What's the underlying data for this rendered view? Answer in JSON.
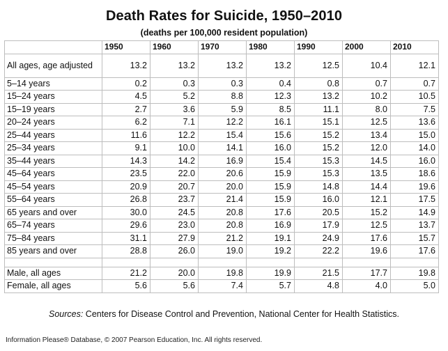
{
  "title": "Death Rates for Suicide, 1950–2010",
  "subtitle": "(deaths per 100,000 resident population)",
  "columns": [
    "1950",
    "1960",
    "1970",
    "1980",
    "1990",
    "2000",
    "2010"
  ],
  "rows": [
    {
      "label": "All ages, age adjusted",
      "values": [
        "13.2",
        "13.2",
        "13.2",
        "13.2",
        "12.5",
        "10.4",
        "12.1"
      ]
    },
    {
      "label": "5–14 years",
      "values": [
        "0.2",
        "0.3",
        "0.3",
        "0.4",
        "0.8",
        "0.7",
        "0.7"
      ]
    },
    {
      "label": "15–24 years",
      "values": [
        "4.5",
        "5.2",
        "8.8",
        "12.3",
        "13.2",
        "10.2",
        "10.5"
      ]
    },
    {
      "label": "15–19 years",
      "values": [
        "2.7",
        "3.6",
        "5.9",
        "8.5",
        "11.1",
        "8.0",
        "7.5"
      ]
    },
    {
      "label": "20–24 years",
      "values": [
        "6.2",
        "7.1",
        "12.2",
        "16.1",
        "15.1",
        "12.5",
        "13.6"
      ]
    },
    {
      "label": "25–44 years",
      "values": [
        "11.6",
        "12.2",
        "15.4",
        "15.6",
        "15.2",
        "13.4",
        "15.0"
      ]
    },
    {
      "label": "25–34 years",
      "values": [
        "9.1",
        "10.0",
        "14.1",
        "16.0",
        "15.2",
        "12.0",
        "14.0"
      ]
    },
    {
      "label": "35–44 years",
      "values": [
        "14.3",
        "14.2",
        "16.9",
        "15.4",
        "15.3",
        "14.5",
        "16.0"
      ]
    },
    {
      "label": "45–64 years",
      "values": [
        "23.5",
        "22.0",
        "20.6",
        "15.9",
        "15.3",
        "13.5",
        "18.6"
      ]
    },
    {
      "label": "45–54 years",
      "values": [
        "20.9",
        "20.7",
        "20.0",
        "15.9",
        "14.8",
        "14.4",
        "19.6"
      ]
    },
    {
      "label": "55–64 years",
      "values": [
        "26.8",
        "23.7",
        "21.4",
        "15.9",
        "16.0",
        "12.1",
        "17.5"
      ]
    },
    {
      "label": "65 years and over",
      "values": [
        "30.0",
        "24.5",
        "20.8",
        "17.6",
        "20.5",
        "15.2",
        "14.9"
      ]
    },
    {
      "label": "65–74 years",
      "values": [
        "29.6",
        "23.0",
        "20.8",
        "16.9",
        "17.9",
        "12.5",
        "13.7"
      ]
    },
    {
      "label": "75–84 years",
      "values": [
        "31.1",
        "27.9",
        "21.2",
        "19.1",
        "24.9",
        "17.6",
        "15.7"
      ]
    },
    {
      "label": "85 years and over",
      "values": [
        "28.8",
        "26.0",
        "19.0",
        "19.2",
        "22.2",
        "19.6",
        "17.6"
      ]
    },
    {
      "label": "Male, all ages",
      "values": [
        "21.2",
        "20.0",
        "19.8",
        "19.9",
        "21.5",
        "17.7",
        "19.8"
      ]
    },
    {
      "label": "Female, all ages",
      "values": [
        "5.6",
        "5.6",
        "7.4",
        "5.7",
        "4.8",
        "4.0",
        "5.0"
      ]
    }
  ],
  "sources_label": "Sources:",
  "sources_text": " Centers for Disease Control and Prevention, National Center for Health Statistics.",
  "footer": "Information Please® Database, © 2007 Pearson Education, Inc. All rights reserved."
}
